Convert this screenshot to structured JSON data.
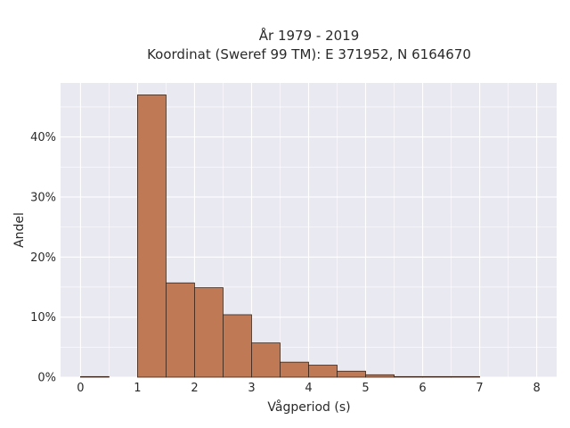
{
  "chart_data": {
    "type": "bar",
    "title": "År 1979 - 2019",
    "subtitle": "Koordinat (Sweref 99 TM): E 371952, N 6164670",
    "xlabel": "Vågperiod (s)",
    "ylabel": "Andel",
    "xlim": [
      -0.35,
      8.35
    ],
    "ylim": [
      0,
      0.49
    ],
    "x_ticks": [
      0,
      1,
      2,
      3,
      4,
      5,
      6,
      7,
      8
    ],
    "x_tick_labels": [
      "0",
      "1",
      "2",
      "3",
      "4",
      "5",
      "6",
      "7",
      "8"
    ],
    "y_ticks": [
      0,
      0.1,
      0.2,
      0.3,
      0.4
    ],
    "y_tick_labels": [
      "0%",
      "10%",
      "20%",
      "30%",
      "40%"
    ],
    "bin_width": 0.5,
    "bins": [
      {
        "start": 0.0,
        "end": 0.5,
        "value": 0.001
      },
      {
        "start": 0.5,
        "end": 1.0,
        "value": 0.0
      },
      {
        "start": 1.0,
        "end": 1.5,
        "value": 0.47
      },
      {
        "start": 1.5,
        "end": 2.0,
        "value": 0.157
      },
      {
        "start": 2.0,
        "end": 2.5,
        "value": 0.149
      },
      {
        "start": 2.5,
        "end": 3.0,
        "value": 0.104
      },
      {
        "start": 3.0,
        "end": 3.5,
        "value": 0.057
      },
      {
        "start": 3.5,
        "end": 4.0,
        "value": 0.025
      },
      {
        "start": 4.0,
        "end": 4.5,
        "value": 0.02
      },
      {
        "start": 4.5,
        "end": 5.0,
        "value": 0.01
      },
      {
        "start": 5.0,
        "end": 5.5,
        "value": 0.004
      },
      {
        "start": 5.5,
        "end": 6.0,
        "value": 0.001
      },
      {
        "start": 6.0,
        "end": 6.5,
        "value": 0.001
      },
      {
        "start": 6.5,
        "end": 7.0,
        "value": 0.001
      }
    ],
    "grid": true,
    "colors": {
      "bar_fill": "#bf7a55",
      "bar_stroke": "#3a2418",
      "plot_background": "#e9e9f1",
      "grid": "#ffffff"
    }
  }
}
